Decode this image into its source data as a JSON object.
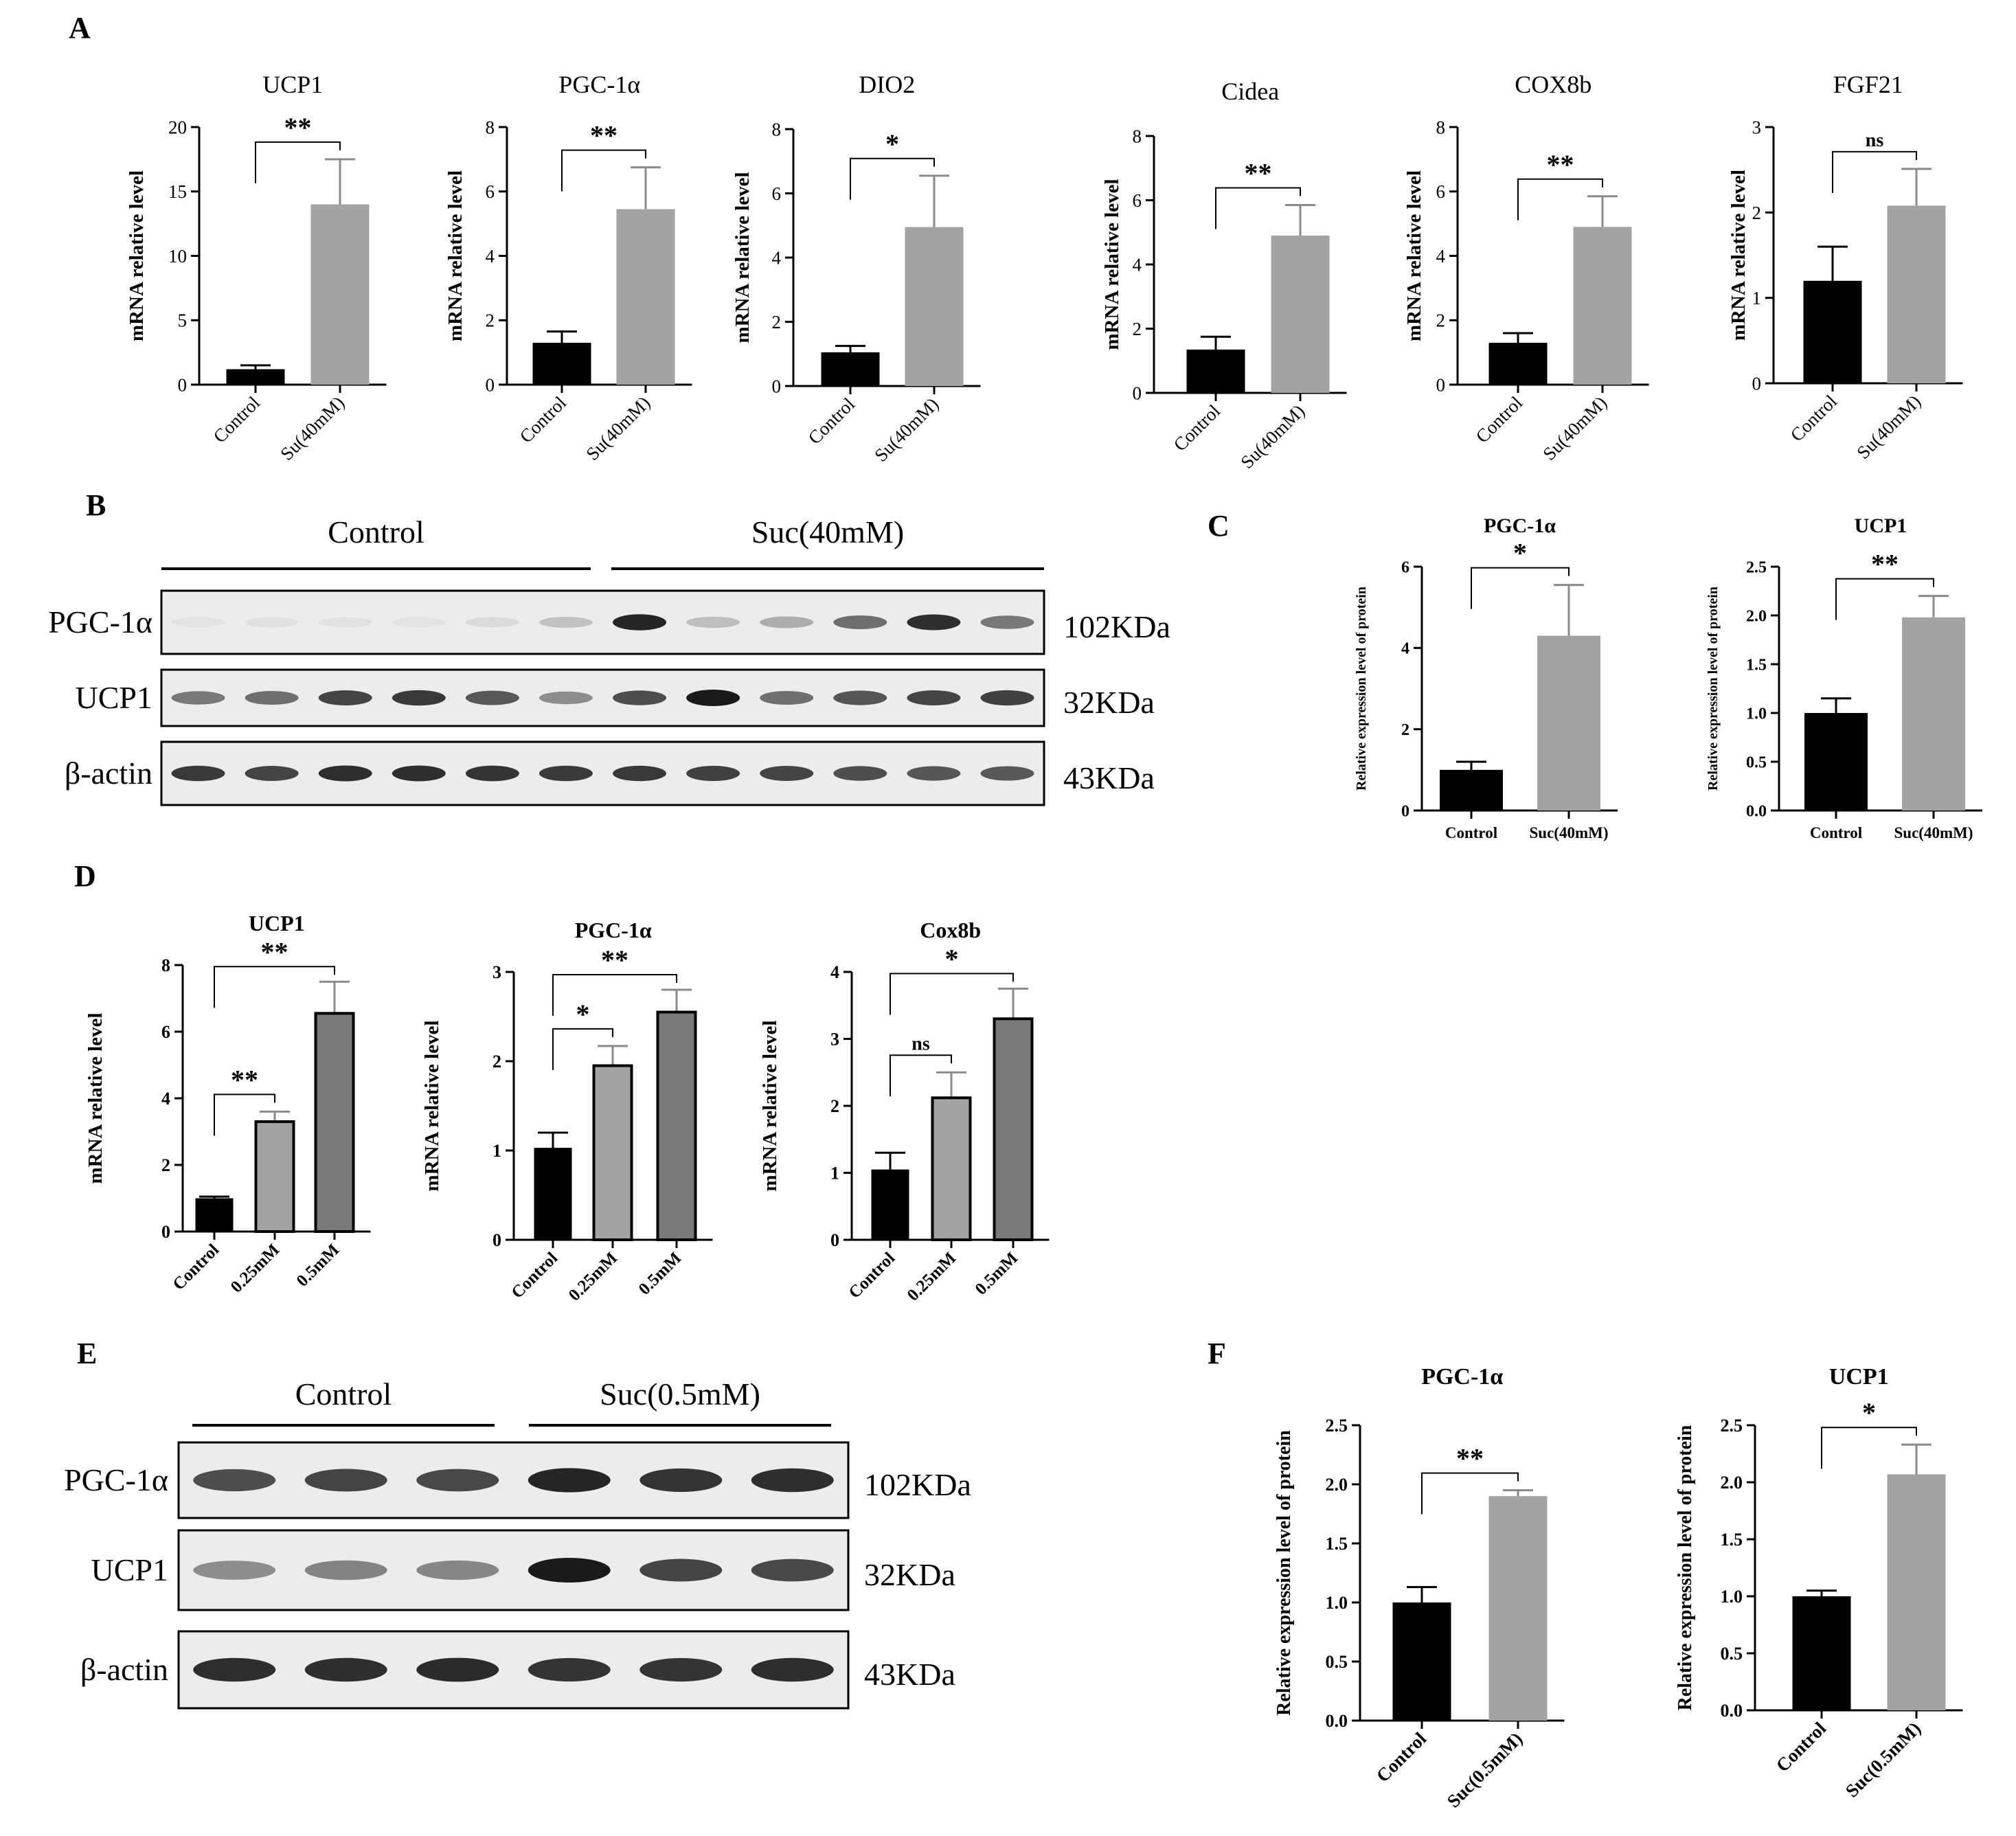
{
  "panel_labels": [
    "A",
    "B",
    "C",
    "D",
    "E",
    "F"
  ],
  "colors": {
    "black_bar": "#000000",
    "gray_bar": "#a3a3a3",
    "dark_gray_bar": "#7a7a7a",
    "band": "#1a1a1a",
    "blot_bg": "#ececec"
  },
  "chart_data": [
    {
      "id": "A1",
      "type": "bar",
      "title": "UCP1",
      "ylabel": "mRNA relative level",
      "categories": [
        "Control",
        "Su(40mM)"
      ],
      "values": [
        1.2,
        14.0
      ],
      "errors": [
        0.3,
        3.5
      ],
      "ylim": [
        0,
        20
      ],
      "yticks": [
        "0",
        "5",
        "10",
        "15",
        "20"
      ],
      "significance": [
        {
          "from": 0,
          "to": 1,
          "label": "**"
        }
      ]
    },
    {
      "id": "A2",
      "type": "bar",
      "title": "PGC-1α",
      "ylabel": "mRNA relative level",
      "categories": [
        "Control",
        "Su(40mM)"
      ],
      "values": [
        1.3,
        5.45
      ],
      "errors": [
        0.35,
        1.3
      ],
      "ylim": [
        0,
        8
      ],
      "yticks": [
        "0",
        "2",
        "4",
        "6",
        "8"
      ],
      "significance": [
        {
          "from": 0,
          "to": 1,
          "label": "**"
        }
      ]
    },
    {
      "id": "A3",
      "type": "bar",
      "title": "DIO2",
      "ylabel": "mRNA relative level",
      "categories": [
        "Control",
        "Su(40mM)"
      ],
      "values": [
        1.05,
        4.95
      ],
      "errors": [
        0.2,
        1.6
      ],
      "ylim": [
        0,
        8
      ],
      "yticks": [
        "0",
        "2",
        "4",
        "6",
        "8"
      ],
      "significance": [
        {
          "from": 0,
          "to": 1,
          "label": "*"
        }
      ]
    },
    {
      "id": "A4",
      "type": "bar",
      "title": "Cidea",
      "ylabel": "mRNA relative level",
      "categories": [
        "Control",
        "Su(40mM)"
      ],
      "values": [
        1.35,
        4.9
      ],
      "errors": [
        0.4,
        0.95
      ],
      "ylim": [
        0,
        8
      ],
      "yticks": [
        "0",
        "2",
        "4",
        "6",
        "8"
      ],
      "significance": [
        {
          "from": 0,
          "to": 1,
          "label": "**"
        }
      ]
    },
    {
      "id": "A5",
      "type": "bar",
      "title": "COX8b",
      "ylabel": "mRNA relative level",
      "categories": [
        "Control",
        "Su(40mM)"
      ],
      "values": [
        1.3,
        4.9
      ],
      "errors": [
        0.3,
        0.95
      ],
      "ylim": [
        0,
        8
      ],
      "yticks": [
        "0",
        "2",
        "4",
        "6",
        "8"
      ],
      "significance": [
        {
          "from": 0,
          "to": 1,
          "label": "**"
        }
      ]
    },
    {
      "id": "A6",
      "type": "bar",
      "title": "FGF21",
      "ylabel": "mRNA relative level",
      "categories": [
        "Control",
        "Su(40mM)"
      ],
      "values": [
        1.2,
        2.08
      ],
      "errors": [
        0.4,
        0.43
      ],
      "ylim": [
        0,
        3
      ],
      "yticks": [
        "0",
        "1",
        "2",
        "3"
      ],
      "significance": [
        {
          "from": 0,
          "to": 1,
          "label": "ns"
        }
      ]
    },
    {
      "id": "C1",
      "type": "bar",
      "title": "PGC-1α",
      "ylabel": "Relative expression level of protein",
      "categories": [
        "Control",
        "Suc(40mM)"
      ],
      "values": [
        1.0,
        4.3
      ],
      "errors": [
        0.2,
        1.25
      ],
      "ylim": [
        0,
        6
      ],
      "yticks": [
        "0",
        "2",
        "4",
        "6"
      ],
      "significance": [
        {
          "from": 0,
          "to": 1,
          "label": "*"
        }
      ]
    },
    {
      "id": "C2",
      "type": "bar",
      "title": "UCP1",
      "ylabel": "Relative expression level of protein",
      "categories": [
        "Control",
        "Suc(40mM)"
      ],
      "values": [
        1.0,
        1.98
      ],
      "errors": [
        0.15,
        0.22
      ],
      "ylim": [
        0,
        2.5
      ],
      "yticks": [
        "0.0",
        "0.5",
        "1.0",
        "1.5",
        "2.0",
        "2.5"
      ],
      "significance": [
        {
          "from": 0,
          "to": 1,
          "label": "**"
        }
      ]
    },
    {
      "id": "D1",
      "type": "bar",
      "title": "UCP1",
      "ylabel": "mRNA relative level",
      "categories": [
        "Control",
        "0.25mM",
        "0.5mM"
      ],
      "values": [
        1.0,
        3.3,
        6.55
      ],
      "errors": [
        0.05,
        0.3,
        0.95
      ],
      "ylim": [
        0,
        8
      ],
      "yticks": [
        "0",
        "2",
        "4",
        "6",
        "8"
      ],
      "significance": [
        {
          "from": 0,
          "to": 1,
          "label": "**"
        },
        {
          "from": 0,
          "to": 2,
          "label": "**"
        }
      ]
    },
    {
      "id": "D2",
      "type": "bar",
      "title": "PGC-1α",
      "ylabel": "mRNA relative level",
      "categories": [
        "Control",
        "0.25mM",
        "0.5mM"
      ],
      "values": [
        1.03,
        1.95,
        2.55
      ],
      "errors": [
        0.17,
        0.22,
        0.25
      ],
      "ylim": [
        0,
        3
      ],
      "yticks": [
        "0",
        "1",
        "2",
        "3"
      ],
      "significance": [
        {
          "from": 0,
          "to": 1,
          "label": "*"
        },
        {
          "from": 0,
          "to": 2,
          "label": "**"
        }
      ]
    },
    {
      "id": "D3",
      "type": "bar",
      "title": "Cox8b",
      "ylabel": "mRNA relative level",
      "categories": [
        "Control",
        "0.25mM",
        "0.5mM"
      ],
      "values": [
        1.05,
        2.12,
        3.3
      ],
      "errors": [
        0.25,
        0.38,
        0.45
      ],
      "ylim": [
        0,
        4
      ],
      "yticks": [
        "0",
        "1",
        "2",
        "3",
        "4"
      ],
      "significance": [
        {
          "from": 0,
          "to": 1,
          "label": "ns"
        },
        {
          "from": 0,
          "to": 2,
          "label": "*"
        }
      ]
    },
    {
      "id": "F1",
      "type": "bar",
      "title": "PGC-1α",
      "ylabel": "Relative expression level of protein",
      "categories": [
        "Control",
        "Suc(0.5mM)"
      ],
      "values": [
        1.0,
        1.9
      ],
      "errors": [
        0.13,
        0.05
      ],
      "ylim": [
        0,
        2.5
      ],
      "yticks": [
        "0.0",
        "0.5",
        "1.0",
        "1.5",
        "2.0",
        "2.5"
      ],
      "significance": [
        {
          "from": 0,
          "to": 1,
          "label": "**"
        }
      ]
    },
    {
      "id": "F2",
      "type": "bar",
      "title": "UCP1",
      "ylabel": "Relative expression level of protein",
      "categories": [
        "Control",
        "Suc(0.5mM)"
      ],
      "values": [
        1.0,
        2.07
      ],
      "errors": [
        0.05,
        0.26
      ],
      "ylim": [
        0,
        2.5
      ],
      "yticks": [
        "0.0",
        "0.5",
        "1.0",
        "1.5",
        "2.0",
        "2.5"
      ],
      "significance": [
        {
          "from": 0,
          "to": 1,
          "label": "*"
        }
      ]
    }
  ],
  "blots": [
    {
      "id": "B",
      "groups": [
        "Control",
        "Suc(40mM)"
      ],
      "lanes_per_group": 6,
      "rows": [
        {
          "label": "PGC-1α",
          "size": "102KDa",
          "intensities": [
            0.04,
            0.06,
            0.05,
            0.04,
            0.08,
            0.2,
            0.95,
            0.22,
            0.3,
            0.6,
            0.9,
            0.55
          ]
        },
        {
          "label": "UCP1",
          "size": "32KDa",
          "intensities": [
            0.55,
            0.6,
            0.8,
            0.85,
            0.7,
            0.45,
            0.75,
            1.0,
            0.6,
            0.72,
            0.8,
            0.82
          ]
        },
        {
          "label": "β-actin",
          "size": "43KDa",
          "intensities": [
            0.85,
            0.8,
            0.9,
            0.9,
            0.88,
            0.85,
            0.85,
            0.82,
            0.8,
            0.75,
            0.72,
            0.7
          ]
        }
      ]
    },
    {
      "id": "E",
      "groups": [
        "Control",
        "Suc(0.5mM)"
      ],
      "lanes_per_group": 3,
      "rows": [
        {
          "label": "PGC-1α",
          "size": "102KDa",
          "intensities": [
            0.75,
            0.8,
            0.78,
            0.95,
            0.88,
            0.9
          ]
        },
        {
          "label": "UCP1",
          "size": "32KDa",
          "intensities": [
            0.45,
            0.5,
            0.48,
            1.0,
            0.8,
            0.78
          ]
        },
        {
          "label": "β-actin",
          "size": "43KDa",
          "intensities": [
            0.9,
            0.9,
            0.92,
            0.88,
            0.88,
            0.9
          ]
        }
      ]
    }
  ]
}
